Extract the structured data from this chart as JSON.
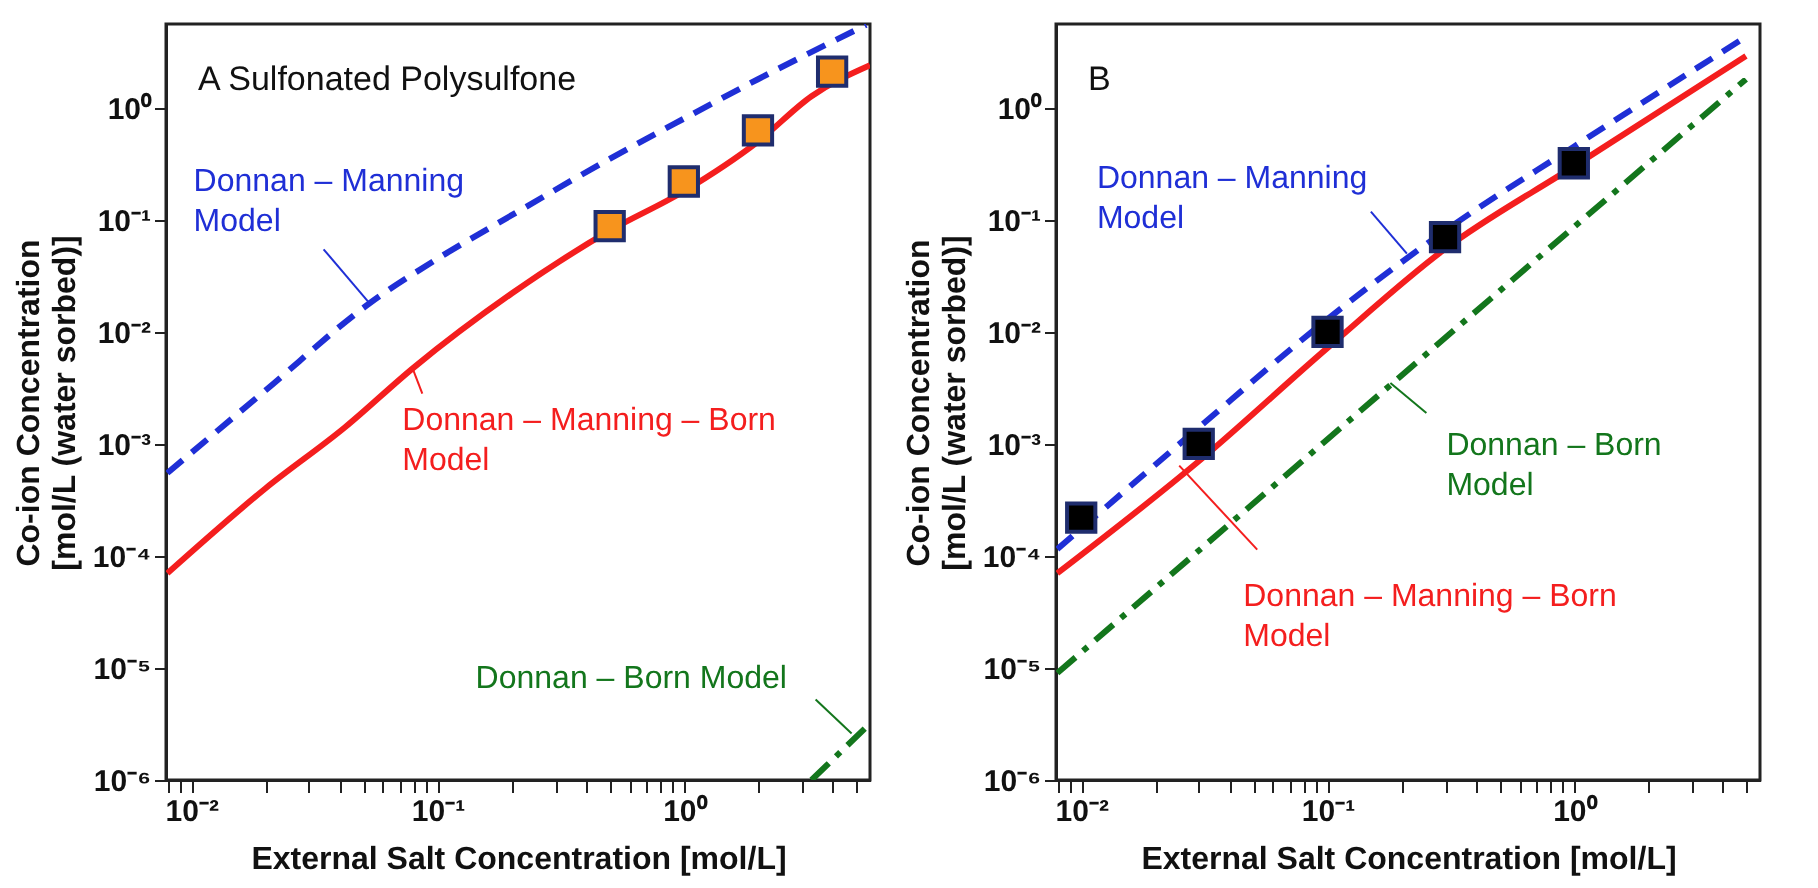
{
  "chart_data": [
    {
      "type": "line",
      "title": "A  Sulfonated Polysulfone",
      "xlabel": "External Salt Concentration [mol/L]",
      "ylabel": "Co-ion Concentration\n[mol/L (water sorbed)]",
      "log": "xy",
      "xlim": [
        0.0079,
        5.7
      ],
      "ylim": [
        1e-06,
        5.6
      ],
      "xticks": [
        {
          "value": 0.008,
          "label": null
        },
        {
          "value": 0.009,
          "label": null
        },
        {
          "value": 0.01,
          "label": "10⁻²"
        },
        {
          "value": 0.02,
          "label": null
        },
        {
          "value": 0.03,
          "label": null
        },
        {
          "value": 0.04,
          "label": null
        },
        {
          "value": 0.05,
          "label": null
        },
        {
          "value": 0.06,
          "label": null
        },
        {
          "value": 0.07,
          "label": null
        },
        {
          "value": 0.08,
          "label": null
        },
        {
          "value": 0.09,
          "label": null
        },
        {
          "value": 0.1,
          "label": "10⁻¹"
        },
        {
          "value": 0.2,
          "label": null
        },
        {
          "value": 0.3,
          "label": null
        },
        {
          "value": 0.4,
          "label": null
        },
        {
          "value": 0.5,
          "label": null
        },
        {
          "value": 0.6,
          "label": null
        },
        {
          "value": 0.7,
          "label": null
        },
        {
          "value": 0.8,
          "label": null
        },
        {
          "value": 0.9,
          "label": null
        },
        {
          "value": 1,
          "label": "10⁰"
        },
        {
          "value": 2,
          "label": null
        },
        {
          "value": 3,
          "label": null
        },
        {
          "value": 4,
          "label": null
        },
        {
          "value": 5,
          "label": null
        }
      ],
      "yticks": [
        {
          "value": 1e-06,
          "label": "10⁻⁶"
        },
        {
          "value": 1e-05,
          "label": "10⁻⁵"
        },
        {
          "value": 0.0001,
          "label": "10⁻⁴"
        },
        {
          "value": 0.001,
          "label": "10⁻³"
        },
        {
          "value": 0.01,
          "label": "10⁻²"
        },
        {
          "value": 0.1,
          "label": "10⁻¹"
        },
        {
          "value": 1,
          "label": "10⁰"
        }
      ],
      "series": [
        {
          "type": "line",
          "color": "#1f2fd6",
          "line_style": "dashed",
          "x": [
            0.008,
            0.02,
            0.053,
            0.1,
            0.2,
            0.5,
            1,
            2,
            5.5
          ],
          "values": [
            0.00055,
            0.003,
            0.018,
            0.045,
            0.11,
            0.35,
            0.8,
            1.8,
            5.5
          ]
        },
        {
          "type": "line",
          "color": "#f41e1e",
          "line_style": "solid",
          "x": [
            0.008,
            0.02,
            0.042,
            0.08,
            0.2,
            0.5,
            1,
            2,
            3.3,
            5.7
          ],
          "values": [
            7e-05,
            0.0004,
            0.0014,
            0.0048,
            0.022,
            0.08,
            0.18,
            0.5,
            1.27,
            2.4
          ]
        },
        {
          "type": "line",
          "color": "#13761c",
          "line_style": "dashdot",
          "x": [
            3.3,
            5.7
          ],
          "values": [
            1e-06,
            3.2e-06
          ]
        },
        {
          "type": "scatter",
          "color": "#f7941d",
          "marker": "square",
          "x": [
            0.5,
            1,
            2,
            4
          ],
          "values": [
            0.088,
            0.22,
            0.63,
            2.1
          ]
        }
      ],
      "annotations": [
        {
          "text": "Donnan – Manning\nModel",
          "x": 0.053,
          "y": 0.018
        },
        {
          "text": "Donnan – Manning – Born\nModel",
          "x": 0.079,
          "y": 0.0048
        },
        {
          "text": "Donnan – Born Model",
          "x": 4.8,
          "y": 2.6e-06
        }
      ]
    },
    {
      "type": "line",
      "title": "B",
      "xlabel": "External Salt Concentration [mol/L]",
      "ylabel": "Co-ion Concentration\n[mol/L (water sorbed)]",
      "log": "xy",
      "xlim": [
        0.0079,
        5.7
      ],
      "ylim": [
        1e-06,
        5.6
      ],
      "xticks": [
        {
          "value": 0.008,
          "label": null
        },
        {
          "value": 0.009,
          "label": null
        },
        {
          "value": 0.01,
          "label": "10⁻²"
        },
        {
          "value": 0.02,
          "label": null
        },
        {
          "value": 0.03,
          "label": null
        },
        {
          "value": 0.04,
          "label": null
        },
        {
          "value": 0.05,
          "label": null
        },
        {
          "value": 0.06,
          "label": null
        },
        {
          "value": 0.07,
          "label": null
        },
        {
          "value": 0.08,
          "label": null
        },
        {
          "value": 0.09,
          "label": null
        },
        {
          "value": 0.1,
          "label": "10⁻¹"
        },
        {
          "value": 0.2,
          "label": null
        },
        {
          "value": 0.3,
          "label": null
        },
        {
          "value": 0.4,
          "label": null
        },
        {
          "value": 0.5,
          "label": null
        },
        {
          "value": 0.6,
          "label": null
        },
        {
          "value": 0.7,
          "label": null
        },
        {
          "value": 0.8,
          "label": null
        },
        {
          "value": 0.9,
          "label": null
        },
        {
          "value": 1,
          "label": "10⁰"
        },
        {
          "value": 2,
          "label": null
        },
        {
          "value": 3,
          "label": null
        },
        {
          "value": 4,
          "label": null
        },
        {
          "value": 5,
          "label": null
        }
      ],
      "yticks": [
        {
          "value": 1e-06,
          "label": "10⁻⁶"
        },
        {
          "value": 1e-05,
          "label": "10⁻⁵"
        },
        {
          "value": 0.0001,
          "label": "10⁻⁴"
        },
        {
          "value": 0.001,
          "label": "10⁻³"
        },
        {
          "value": 0.01,
          "label": "10⁻²"
        },
        {
          "value": 0.1,
          "label": "10⁻¹"
        },
        {
          "value": 1,
          "label": "10⁰"
        }
      ],
      "series": [
        {
          "type": "line",
          "color": "#1f2fd6",
          "line_style": "dashed",
          "x": [
            0.008,
            0.03,
            0.1,
            0.3,
            1,
            5
          ],
          "values": [
            0.000115,
            0.0014,
            0.013,
            0.08,
            0.45,
            4.3
          ]
        },
        {
          "type": "line",
          "color": "#f41e1e",
          "line_style": "solid",
          "x": [
            0.008,
            0.03,
            0.1,
            0.3,
            1,
            5
          ],
          "values": [
            7e-05,
            0.0007,
            0.0072,
            0.055,
            0.3,
            2.9
          ]
        },
        {
          "type": "line",
          "color": "#13761c",
          "line_style": "dashdot",
          "x": [
            0.008,
            0.1,
            5
          ],
          "values": [
            9e-06,
            0.0011,
            1.8
          ]
        },
        {
          "type": "scatter",
          "color": "#000000",
          "marker": "square",
          "x": [
            0.01,
            0.03,
            0.1,
            0.3,
            1
          ],
          "values": [
            0.00022,
            0.001,
            0.01,
            0.07,
            0.32
          ]
        }
      ],
      "annotations": [
        {
          "text": "Donnan – Manning\nModel",
          "x": 0.21,
          "y": 0.05
        },
        {
          "text": "Donnan – Manning – Born\nModel",
          "x": 0.025,
          "y": 0.00064
        },
        {
          "text": "Donnan – Born\nModel",
          "x": 0.18,
          "y": 0.0035
        }
      ]
    }
  ]
}
